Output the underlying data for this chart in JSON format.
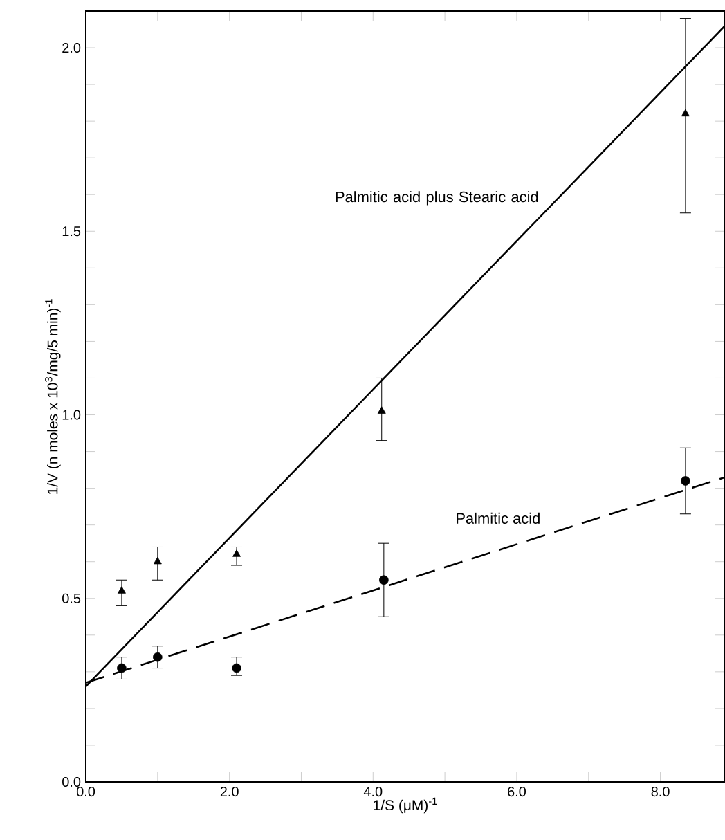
{
  "chart_data": {
    "type": "scatter",
    "xlabel": "1/S (μM)$^{-1}$",
    "ylabel": "1/V (n moles x 10$^{3}$/mg/5 min)$^{-1}$",
    "xlim": [
      0,
      8.9
    ],
    "ylim": [
      0,
      2.1
    ],
    "xticks": [
      {
        "value": 0,
        "label": "0.0"
      },
      {
        "value": 1,
        "label": null
      },
      {
        "value": 2,
        "label": "2.0"
      },
      {
        "value": 3,
        "label": null
      },
      {
        "value": 4,
        "label": "4.0"
      },
      {
        "value": 5,
        "label": null
      },
      {
        "value": 6,
        "label": "6.0"
      },
      {
        "value": 7,
        "label": null
      },
      {
        "value": 8,
        "label": "8.0"
      }
    ],
    "yticks": [
      {
        "value": 0,
        "label": "0.0"
      },
      {
        "value": 0.1,
        "label": null
      },
      {
        "value": 0.2,
        "label": null
      },
      {
        "value": 0.3,
        "label": null
      },
      {
        "value": 0.4,
        "label": null
      },
      {
        "value": 0.5,
        "label": "0.5"
      },
      {
        "value": 0.6,
        "label": null
      },
      {
        "value": 0.7,
        "label": null
      },
      {
        "value": 0.8,
        "label": null
      },
      {
        "value": 0.9,
        "label": null
      },
      {
        "value": 1.0,
        "label": "1.0"
      },
      {
        "value": 1.1,
        "label": null
      },
      {
        "value": 1.2,
        "label": null
      },
      {
        "value": 1.3,
        "label": null
      },
      {
        "value": 1.4,
        "label": null
      },
      {
        "value": 1.5,
        "label": "1.5"
      },
      {
        "value": 1.6,
        "label": null
      },
      {
        "value": 1.7,
        "label": null
      },
      {
        "value": 1.8,
        "label": null
      },
      {
        "value": 1.9,
        "label": null
      },
      {
        "value": 2.0,
        "label": "2.0"
      }
    ],
    "series": [
      {
        "marker": "triangle",
        "color": "#000000",
        "x": [
          0.5,
          1.0,
          2.1,
          4.12,
          8.35
        ],
        "values": [
          0.52,
          0.6,
          0.62,
          1.01,
          1.82
        ],
        "errors": [
          [
            0.48,
            0.55
          ],
          [
            0.55,
            0.64
          ],
          [
            0.59,
            0.64
          ],
          [
            0.93,
            1.1
          ],
          [
            1.55,
            2.08
          ]
        ]
      },
      {
        "marker": "circle",
        "color": "#000000",
        "x": [
          0.5,
          1.0,
          2.1,
          4.15,
          8.35
        ],
        "values": [
          0.31,
          0.34,
          0.31,
          0.55,
          0.82
        ],
        "errors": [
          [
            0.28,
            0.34
          ],
          [
            0.31,
            0.37
          ],
          [
            0.29,
            0.34
          ],
          [
            0.45,
            0.65
          ],
          [
            0.73,
            0.91
          ]
        ]
      },
      {
        "type": "line",
        "name": "Palmitic acid plus Stearic acid",
        "line_style": "solid",
        "color": "#000000",
        "x": [
          0,
          8.9
        ],
        "values": [
          0.26,
          2.06
        ]
      },
      {
        "type": "line",
        "name": "Palmitic acid",
        "line_style": "dashed",
        "color": "#000000",
        "x": [
          0,
          8.9
        ],
        "values": [
          0.27,
          0.83
        ]
      }
    ]
  }
}
